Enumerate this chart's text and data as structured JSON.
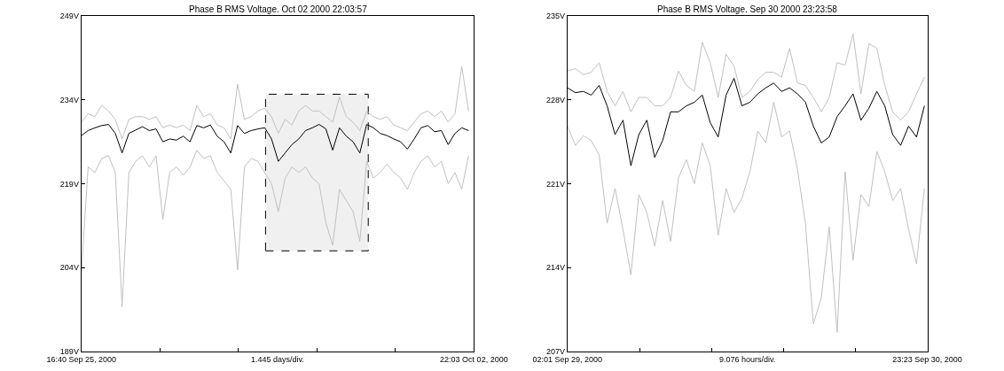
{
  "chart_data": [
    {
      "type": "line",
      "title": "Phase B RMS Voltage. Oct 02 2000 22:03:57",
      "xlabel": "1.445 days/div.",
      "x": [
        "2000-09-25T16:40",
        "2000-09-25T19:40",
        "2000-09-25T22:40",
        "2000-09-26T01:40",
        "2000-09-26T04:40",
        "2000-09-26T07:40",
        "2000-09-26T10:40",
        "2000-09-26T13:40",
        "2000-09-26T16:40",
        "2000-09-26T19:40",
        "2000-09-26T22:40",
        "2000-09-27T01:40",
        "2000-09-27T04:40",
        "2000-09-27T07:40",
        "2000-09-27T10:40",
        "2000-09-27T13:40",
        "2000-09-27T16:40",
        "2000-09-27T19:40",
        "2000-09-27T22:40",
        "2000-09-28T01:40",
        "2000-09-28T04:40",
        "2000-09-28T07:40",
        "2000-09-28T10:40",
        "2000-09-28T13:40",
        "2000-09-28T16:40",
        "2000-09-28T19:40",
        "2000-09-28T22:40",
        "2000-09-29T01:40",
        "2000-09-29T04:40",
        "2000-09-29T07:40",
        "2000-09-29T10:40",
        "2000-09-29T13:40",
        "2000-09-29T16:40",
        "2000-09-29T19:40",
        "2000-09-29T22:40",
        "2000-09-30T01:40",
        "2000-09-30T04:40",
        "2000-09-30T07:40",
        "2000-09-30T10:40",
        "2000-09-30T13:40",
        "2000-09-30T16:40",
        "2000-09-30T19:40",
        "2000-09-30T22:40",
        "2000-10-01T01:40",
        "2000-10-01T04:40",
        "2000-10-01T07:40",
        "2000-10-01T10:40",
        "2000-10-01T13:40",
        "2000-10-01T16:40",
        "2000-10-01T19:40",
        "2000-10-01T22:40",
        "2000-10-02T01:40",
        "2000-10-02T04:40",
        "2000-10-02T07:40",
        "2000-10-02T10:40",
        "2000-10-02T13:40",
        "2000-10-02T16:40",
        "2000-10-02T19:40"
      ],
      "series": [
        {
          "color": "#c0c0c0",
          "values": [
            230,
            231.5,
            231,
            233,
            232,
            230.5,
            227,
            230.5,
            231,
            231,
            230.5,
            231,
            229,
            229.5,
            229,
            229.5,
            228.5,
            233,
            231,
            231.5,
            229.5,
            229,
            227,
            236.8,
            230.5,
            231,
            232,
            232.5,
            231,
            228,
            230.5,
            229.5,
            232,
            233,
            232,
            232,
            231,
            230,
            234.5,
            231,
            230,
            228.5,
            232,
            231,
            230.5,
            231,
            229.5,
            229,
            228.5,
            230,
            231.5,
            232,
            231,
            232,
            230,
            231.5,
            240,
            232
          ]
        },
        {
          "color": "#c0c0c0",
          "values": [
            203,
            222,
            221,
            223.5,
            224,
            221,
            197,
            221,
            223,
            224,
            222,
            224,
            212.6,
            221,
            222,
            220.5,
            222,
            225,
            223.5,
            224,
            221,
            219.5,
            218,
            203.6,
            222,
            223.5,
            223,
            221,
            219,
            214,
            220,
            222,
            221,
            222,
            220,
            219,
            212,
            208,
            218,
            216,
            214,
            208.7,
            223,
            220,
            221,
            222.5,
            221,
            220,
            218,
            221,
            223,
            224,
            222,
            223,
            219,
            221,
            218,
            224
          ]
        },
        {
          "color": "#000000",
          "values": [
            227.6,
            228.5,
            229,
            229.4,
            229.6,
            228,
            224.5,
            228,
            228.6,
            229.2,
            228.5,
            228.8,
            226.5,
            227,
            226.8,
            227.5,
            226.5,
            229.4,
            229,
            229.5,
            227.5,
            226.5,
            224.5,
            229.4,
            228,
            228.5,
            228.8,
            229,
            227,
            223,
            224.5,
            226,
            227,
            228.5,
            229,
            229.6,
            228.8,
            225,
            229,
            227.5,
            226.5,
            224.5,
            229.6,
            229,
            228,
            227.6,
            227,
            226.5,
            225.2,
            227,
            229,
            229.4,
            228.3,
            228.5,
            226,
            228,
            229,
            228.5
          ]
        }
      ],
      "xlim": [
        "2000-09-25T16:40",
        "2000-10-02T22:03"
      ],
      "xticks": [
        {
          "value": "2000-09-25T16:40",
          "label": "16:40 Sep 25, 2000"
        },
        {
          "value": "2000-09-27T03:21",
          "label": null
        },
        {
          "value": "2000-09-28T14:02",
          "label": null
        },
        {
          "value": "2000-09-30T00:42",
          "label": null
        },
        {
          "value": "2000-10-01T11:23",
          "label": null
        },
        {
          "value": "2000-10-02T22:03",
          "label": "22:03 Oct 02, 2000"
        }
      ],
      "ylim": [
        189,
        249
      ],
      "yticks": [
        {
          "value": 189,
          "label": "189V"
        },
        {
          "value": 204,
          "label": "204V"
        },
        {
          "value": 219,
          "label": "219V"
        },
        {
          "value": 234,
          "label": "234V"
        },
        {
          "value": 249,
          "label": "249V"
        }
      ],
      "bands": [
        {
          "axis": "x",
          "from": "2000-09-29T02:01",
          "to": "2000-09-30T23:23",
          "color": "#000000"
        }
      ],
      "marker": "none",
      "line_style": "solid"
    },
    {
      "type": "line",
      "title": "Phase B RMS Voltage. Sep 30 2000 23:23:58",
      "xlabel": "9.076 hours/div.",
      "x": [
        "2000-09-29T02:01",
        "2000-09-29T03:01",
        "2000-09-29T04:01",
        "2000-09-29T05:01",
        "2000-09-29T06:01",
        "2000-09-29T07:01",
        "2000-09-29T08:01",
        "2000-09-29T09:01",
        "2000-09-29T10:01",
        "2000-09-29T11:01",
        "2000-09-29T12:01",
        "2000-09-29T13:01",
        "2000-09-29T14:01",
        "2000-09-29T15:01",
        "2000-09-29T16:01",
        "2000-09-29T17:01",
        "2000-09-29T18:01",
        "2000-09-29T19:01",
        "2000-09-29T20:01",
        "2000-09-29T21:01",
        "2000-09-29T22:01",
        "2000-09-29T23:01",
        "2000-09-30T00:01",
        "2000-09-30T01:01",
        "2000-09-30T02:01",
        "2000-09-30T03:01",
        "2000-09-30T04:01",
        "2000-09-30T05:01",
        "2000-09-30T06:01",
        "2000-09-30T07:01",
        "2000-09-30T08:01",
        "2000-09-30T09:01",
        "2000-09-30T10:01",
        "2000-09-30T11:01",
        "2000-09-30T12:01",
        "2000-09-30T13:01",
        "2000-09-30T14:01",
        "2000-09-30T15:01",
        "2000-09-30T16:01",
        "2000-09-30T17:01",
        "2000-09-30T18:01",
        "2000-09-30T19:01",
        "2000-09-30T20:01",
        "2000-09-30T21:01",
        "2000-09-30T22:01",
        "2000-09-30T23:01"
      ],
      "series": [
        {
          "color": "#c0c0c0",
          "values": [
            230.4,
            230.6,
            230.1,
            230.3,
            231.1,
            228.7,
            227.5,
            228.7,
            227.0,
            228.2,
            228.2,
            227.5,
            227.5,
            228.2,
            230.4,
            229.2,
            228.7,
            232.8,
            231.1,
            228.2,
            231.8,
            230.8,
            228.2,
            228.7,
            229.7,
            230.3,
            230.3,
            229.9,
            232.3,
            229.4,
            229.2,
            228.2,
            227.0,
            228.2,
            231.1,
            230.9,
            233.5,
            228.5,
            232.7,
            232.3,
            229.2,
            227.0,
            226.3,
            227.0,
            228.5,
            229.9
          ]
        },
        {
          "color": "#c0c0c0",
          "values": [
            225.8,
            224.2,
            225.0,
            224.6,
            223.4,
            217.7,
            220.6,
            217.2,
            213.4,
            220.1,
            218.6,
            215.8,
            219.6,
            216.2,
            221.5,
            223.0,
            221.0,
            224.4,
            222.5,
            216.7,
            220.6,
            218.6,
            219.8,
            222.0,
            225.4,
            224.4,
            227.8,
            224.9,
            225.4,
            222.2,
            217.7,
            209.3,
            211.5,
            217.4,
            208.6,
            222.0,
            214.6,
            220.1,
            219.1,
            223.7,
            222.0,
            219.6,
            220.6,
            217.2,
            214.3,
            220.6
          ]
        },
        {
          "color": "#000000",
          "values": [
            229.0,
            228.6,
            228.7,
            228.4,
            229.2,
            227.5,
            225.1,
            226.3,
            222.5,
            225.1,
            226.3,
            223.2,
            224.6,
            227.0,
            227.0,
            227.5,
            227.8,
            228.4,
            226.1,
            224.9,
            228.4,
            229.8,
            227.5,
            227.8,
            228.5,
            229.0,
            229.4,
            228.7,
            229.0,
            228.5,
            227.8,
            225.8,
            224.4,
            224.9,
            226.6,
            227.5,
            228.5,
            226.3,
            227.3,
            228.7,
            227.5,
            225.1,
            224.2,
            225.8,
            224.9,
            227.5
          ]
        }
      ],
      "xlim": [
        "2000-09-29T02:01",
        "2000-09-30T23:23"
      ],
      "xticks": [
        {
          "value": "2000-09-29T02:01",
          "label": "02:01 Sep 29, 2000"
        },
        {
          "value": "2000-09-29T11:06",
          "label": null
        },
        {
          "value": "2000-09-29T20:10",
          "label": null
        },
        {
          "value": "2000-09-30T05:15",
          "label": null
        },
        {
          "value": "2000-09-30T14:19",
          "label": null
        },
        {
          "value": "2000-09-30T23:23",
          "label": "23:23 Sep 30, 2000"
        }
      ],
      "ylim": [
        207,
        235
      ],
      "yticks": [
        {
          "value": 207,
          "label": "207V"
        },
        {
          "value": 214,
          "label": "214V"
        },
        {
          "value": 221,
          "label": "221V"
        },
        {
          "value": 228,
          "label": "228V"
        },
        {
          "value": 235,
          "label": "235V"
        }
      ],
      "marker": "none",
      "line_style": "solid"
    }
  ]
}
